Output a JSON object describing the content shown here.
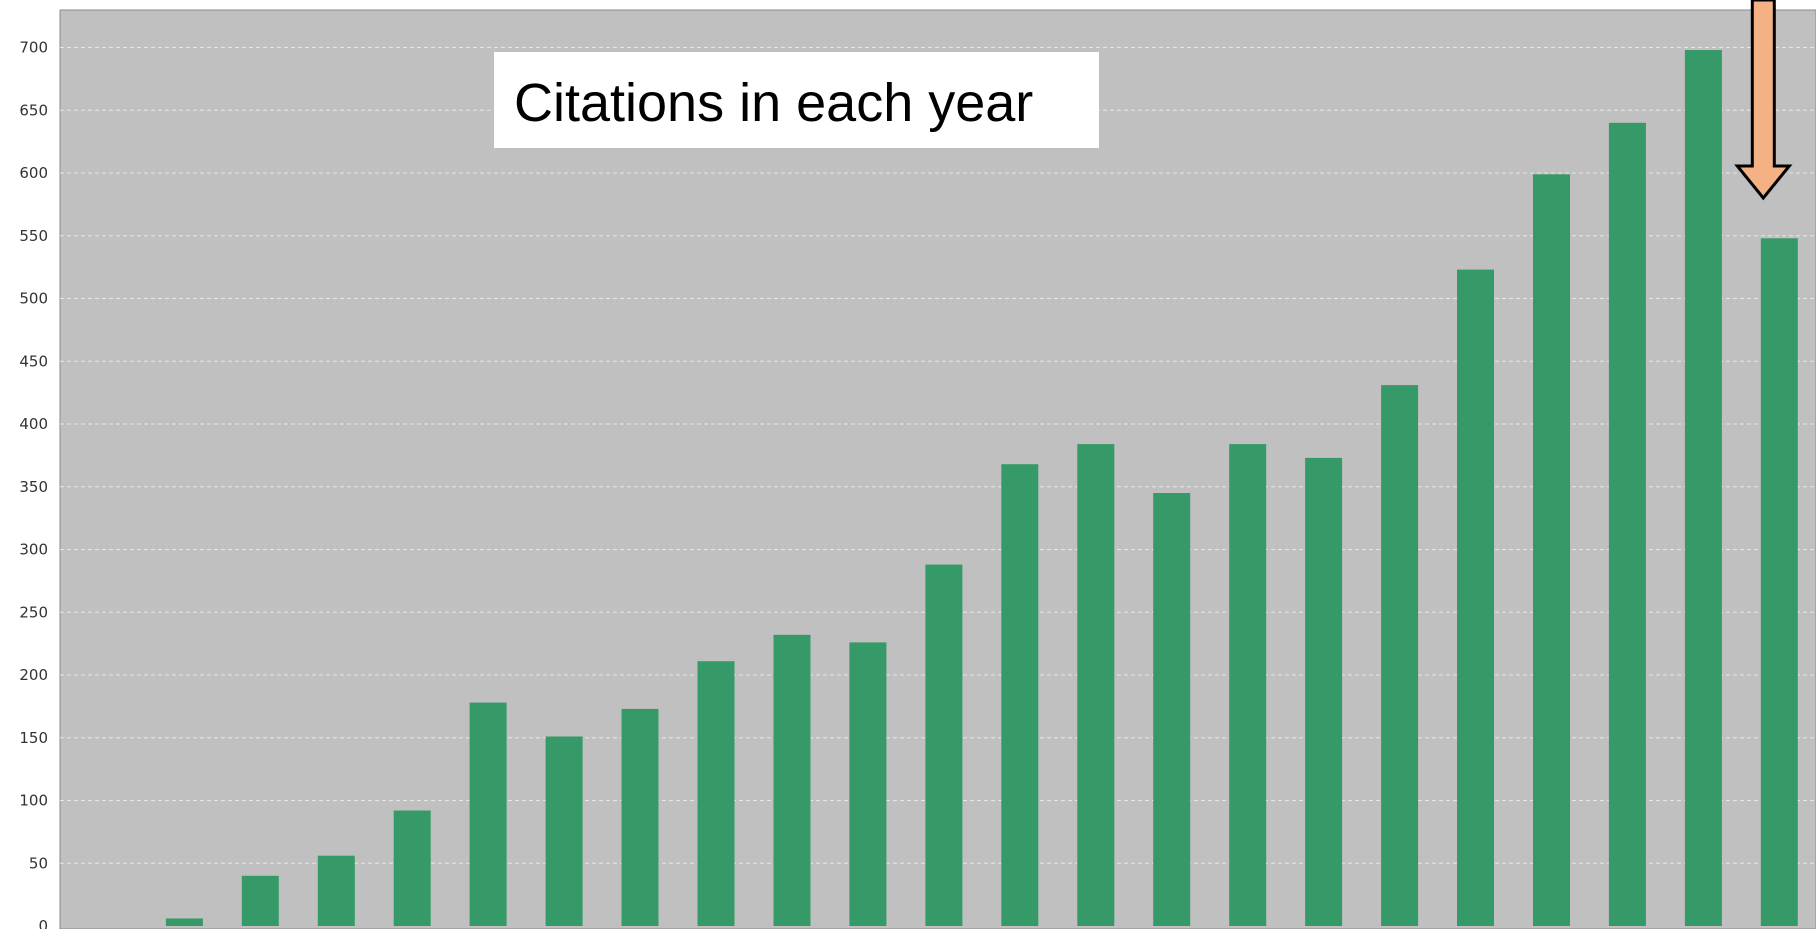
{
  "chart_data": {
    "type": "bar",
    "title": "Citations in each year",
    "xlabel": "",
    "ylabel": "",
    "ylim": [
      0,
      730
    ],
    "yticks": [
      0,
      50,
      100,
      150,
      200,
      250,
      300,
      350,
      400,
      450,
      500,
      550,
      600,
      650,
      700
    ],
    "values": [
      0,
      6,
      40,
      56,
      92,
      178,
      151,
      173,
      211,
      232,
      226,
      288,
      368,
      384,
      345,
      384,
      373,
      431,
      523,
      599,
      640,
      698,
      548
    ],
    "grid": true,
    "annotations": [
      {
        "type": "arrow",
        "points_to": "last bar"
      }
    ]
  },
  "colors": {
    "plot_background": "#c0c0c0",
    "bar": "#359a68",
    "grid": "#e6e6e6",
    "title_box": "#ffffff",
    "arrow_fill": "#f4b183",
    "arrow_stroke": "#000000"
  }
}
